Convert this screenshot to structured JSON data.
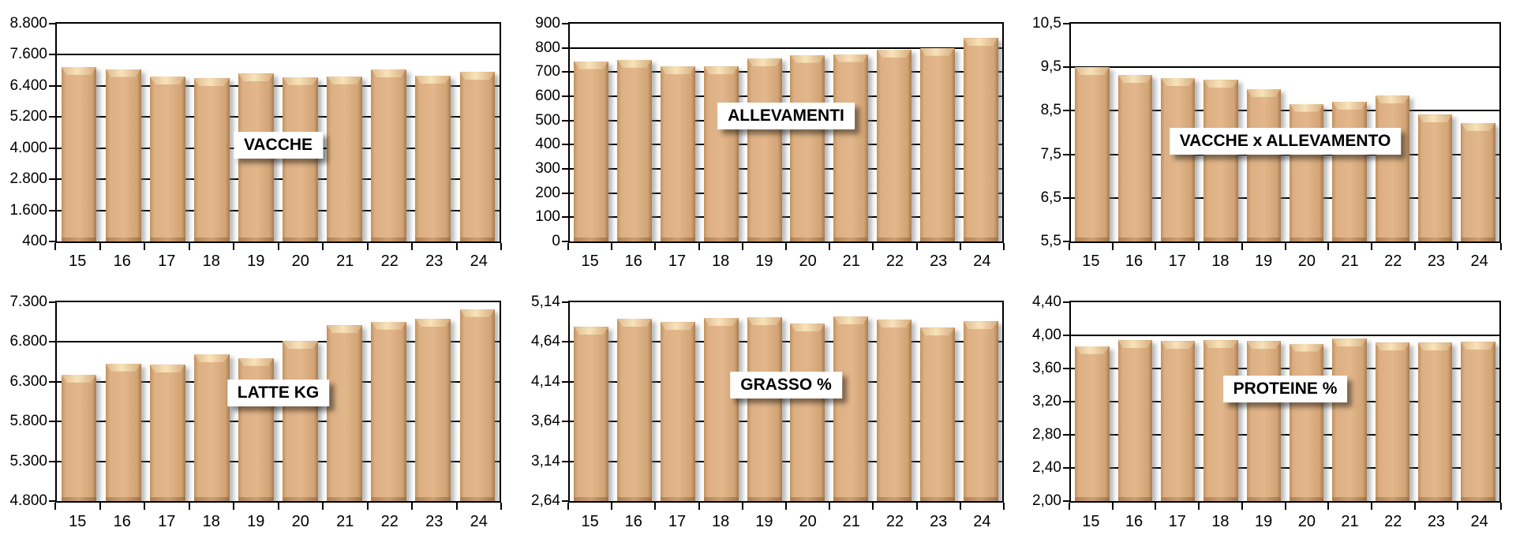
{
  "page": {
    "background": "#ffffff",
    "description": "Dashboard of six bar charts, years 15-24"
  },
  "style": {
    "bar_fill": "#d9a97c",
    "bar_edge_dark": "#a97c4d",
    "bar_top_highlight": "#f8e3ba",
    "grid_color": "#000000",
    "plot_border_color": "#000000",
    "title_box_background": "#ffffff"
  },
  "chart_data": [
    {
      "type": "bar",
      "title": "VACCHE",
      "categories": [
        "15",
        "16",
        "17",
        "18",
        "19",
        "20",
        "21",
        "22",
        "23",
        "24"
      ],
      "values": [
        7130,
        7050,
        6760,
        6690,
        6870,
        6740,
        6770,
        7040,
        6790,
        6940
      ],
      "ylim": [
        400,
        8800
      ],
      "yticks": [
        400,
        1600,
        2800,
        4000,
        5200,
        6400,
        7600,
        8800
      ],
      "ytick_labels": [
        "400",
        "1.600",
        "2.800",
        "4.000",
        "5.200",
        "6.400",
        "7.600",
        "8.800"
      ],
      "xlabel": "",
      "ylabel": "",
      "grid": true,
      "legend": "none",
      "title_y_value": 4100
    },
    {
      "type": "bar",
      "title": "ALLEVAMENTI",
      "categories": [
        "15",
        "16",
        "17",
        "18",
        "19",
        "20",
        "21",
        "22",
        "23",
        "24"
      ],
      "values": [
        745,
        751,
        724,
        723,
        757,
        771,
        774,
        793,
        800,
        840
      ],
      "ylim": [
        0,
        900
      ],
      "yticks": [
        0,
        100,
        200,
        300,
        400,
        500,
        600,
        700,
        800,
        900
      ],
      "ytick_labels": [
        "0",
        "100",
        "200",
        "300",
        "400",
        "500",
        "600",
        "700",
        "800",
        "900"
      ],
      "xlabel": "",
      "ylabel": "",
      "grid": true,
      "legend": "none",
      "title_y_value": 520
    },
    {
      "type": "bar",
      "title": "VACCHE x ALLEVAMENTO",
      "categories": [
        "15",
        "16",
        "17",
        "18",
        "19",
        "20",
        "21",
        "22",
        "23",
        "24"
      ],
      "values": [
        9.5,
        9.32,
        9.25,
        9.21,
        9.0,
        8.66,
        8.71,
        8.85,
        8.41,
        8.22
      ],
      "ylim": [
        5.5,
        10.5
      ],
      "yticks": [
        5.5,
        6.5,
        7.5,
        8.5,
        9.5,
        10.5
      ],
      "ytick_labels": [
        "5,5",
        "6,5",
        "7,5",
        "8,5",
        "9,5",
        "10,5"
      ],
      "xlabel": "",
      "ylabel": "",
      "grid": true,
      "legend": "none",
      "title_y_value": 7.8
    },
    {
      "type": "bar",
      "title": "LATTE KG",
      "categories": [
        "15",
        "16",
        "17",
        "18",
        "19",
        "20",
        "21",
        "22",
        "23",
        "24"
      ],
      "values": [
        6390,
        6530,
        6515,
        6645,
        6600,
        6810,
        7010,
        7055,
        7090,
        7215
      ],
      "ylim": [
        4800,
        7300
      ],
      "yticks": [
        4800,
        5300,
        5800,
        6300,
        6800,
        7300
      ],
      "ytick_labels": [
        "4.800",
        "5.300",
        "5.800",
        "6.300",
        "6.800",
        "7.300"
      ],
      "xlabel": "",
      "ylabel": "",
      "grid": true,
      "legend": "none",
      "title_y_value": 6160
    },
    {
      "type": "bar",
      "title": "GRASSO %",
      "categories": [
        "15",
        "16",
        "17",
        "18",
        "19",
        "20",
        "21",
        "22",
        "23",
        "24"
      ],
      "values": [
        4.83,
        4.93,
        4.89,
        4.94,
        4.95,
        4.87,
        4.96,
        4.92,
        4.82,
        4.9
      ],
      "ylim": [
        2.64,
        5.14
      ],
      "yticks": [
        2.64,
        3.14,
        3.64,
        4.14,
        4.64,
        5.14
      ],
      "ytick_labels": [
        "2,64",
        "3,14",
        "3,64",
        "4,14",
        "4,64",
        "5,14"
      ],
      "xlabel": "",
      "ylabel": "",
      "grid": true,
      "legend": "none",
      "title_y_value": 4.1
    },
    {
      "type": "bar",
      "title": "PROTEINE %",
      "categories": [
        "15",
        "16",
        "17",
        "18",
        "19",
        "20",
        "21",
        "22",
        "23",
        "24"
      ],
      "values": [
        3.87,
        3.94,
        3.93,
        3.94,
        3.93,
        3.9,
        3.96,
        3.91,
        3.91,
        3.92
      ],
      "ylim": [
        2.0,
        4.4
      ],
      "yticks": [
        2.0,
        2.4,
        2.8,
        3.2,
        3.6,
        4.0,
        4.4
      ],
      "ytick_labels": [
        "2,00",
        "2,40",
        "2,80",
        "3,20",
        "3,60",
        "4,00",
        "4,40"
      ],
      "xlabel": "",
      "ylabel": "",
      "grid": true,
      "legend": "none",
      "title_y_value": 3.35
    }
  ]
}
